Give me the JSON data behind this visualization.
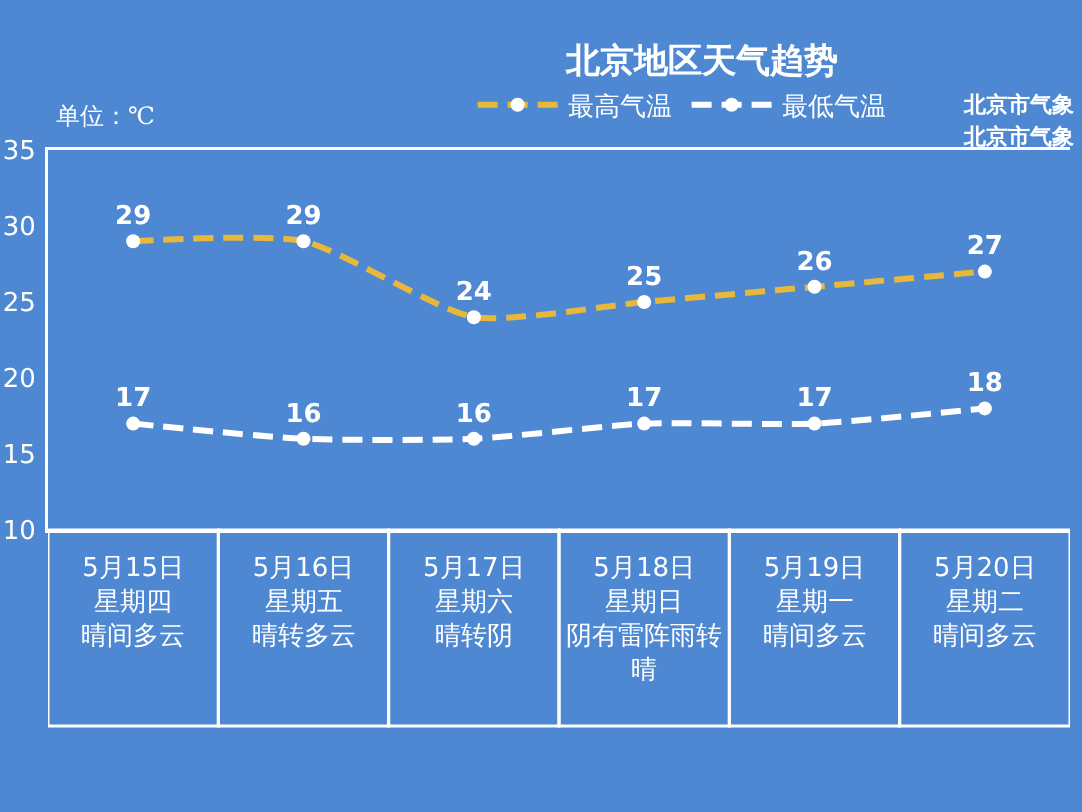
{
  "chart_data": {
    "type": "line",
    "title": "北京地区天气趋势",
    "ylabel": "单位：℃",
    "annotations": [
      "北京市气象",
      "北京市气象"
    ],
    "categories": [
      "5月15日星期四晴间多云",
      "5月16日星期五晴转多云",
      "5月17日星期六晴转阴",
      "5月18日星期日阴有雷阵雨转晴",
      "5月19日星期一晴间多云",
      "5月20日星期二晴间多云"
    ],
    "series": [
      {
        "name": "最高气温",
        "color": "#e8b83a",
        "values": [
          29,
          29,
          24,
          25,
          26,
          27
        ]
      },
      {
        "name": "最低气温",
        "color": "#ffffff",
        "values": [
          17,
          16,
          16,
          17,
          17,
          18
        ]
      }
    ],
    "ylim": [
      10,
      35
    ],
    "yticks": [
      10,
      15,
      20,
      25,
      30,
      35
    ],
    "grid": false,
    "legend": "top",
    "marker": "circle",
    "line_style": "dashed",
    "data_labels": true
  }
}
